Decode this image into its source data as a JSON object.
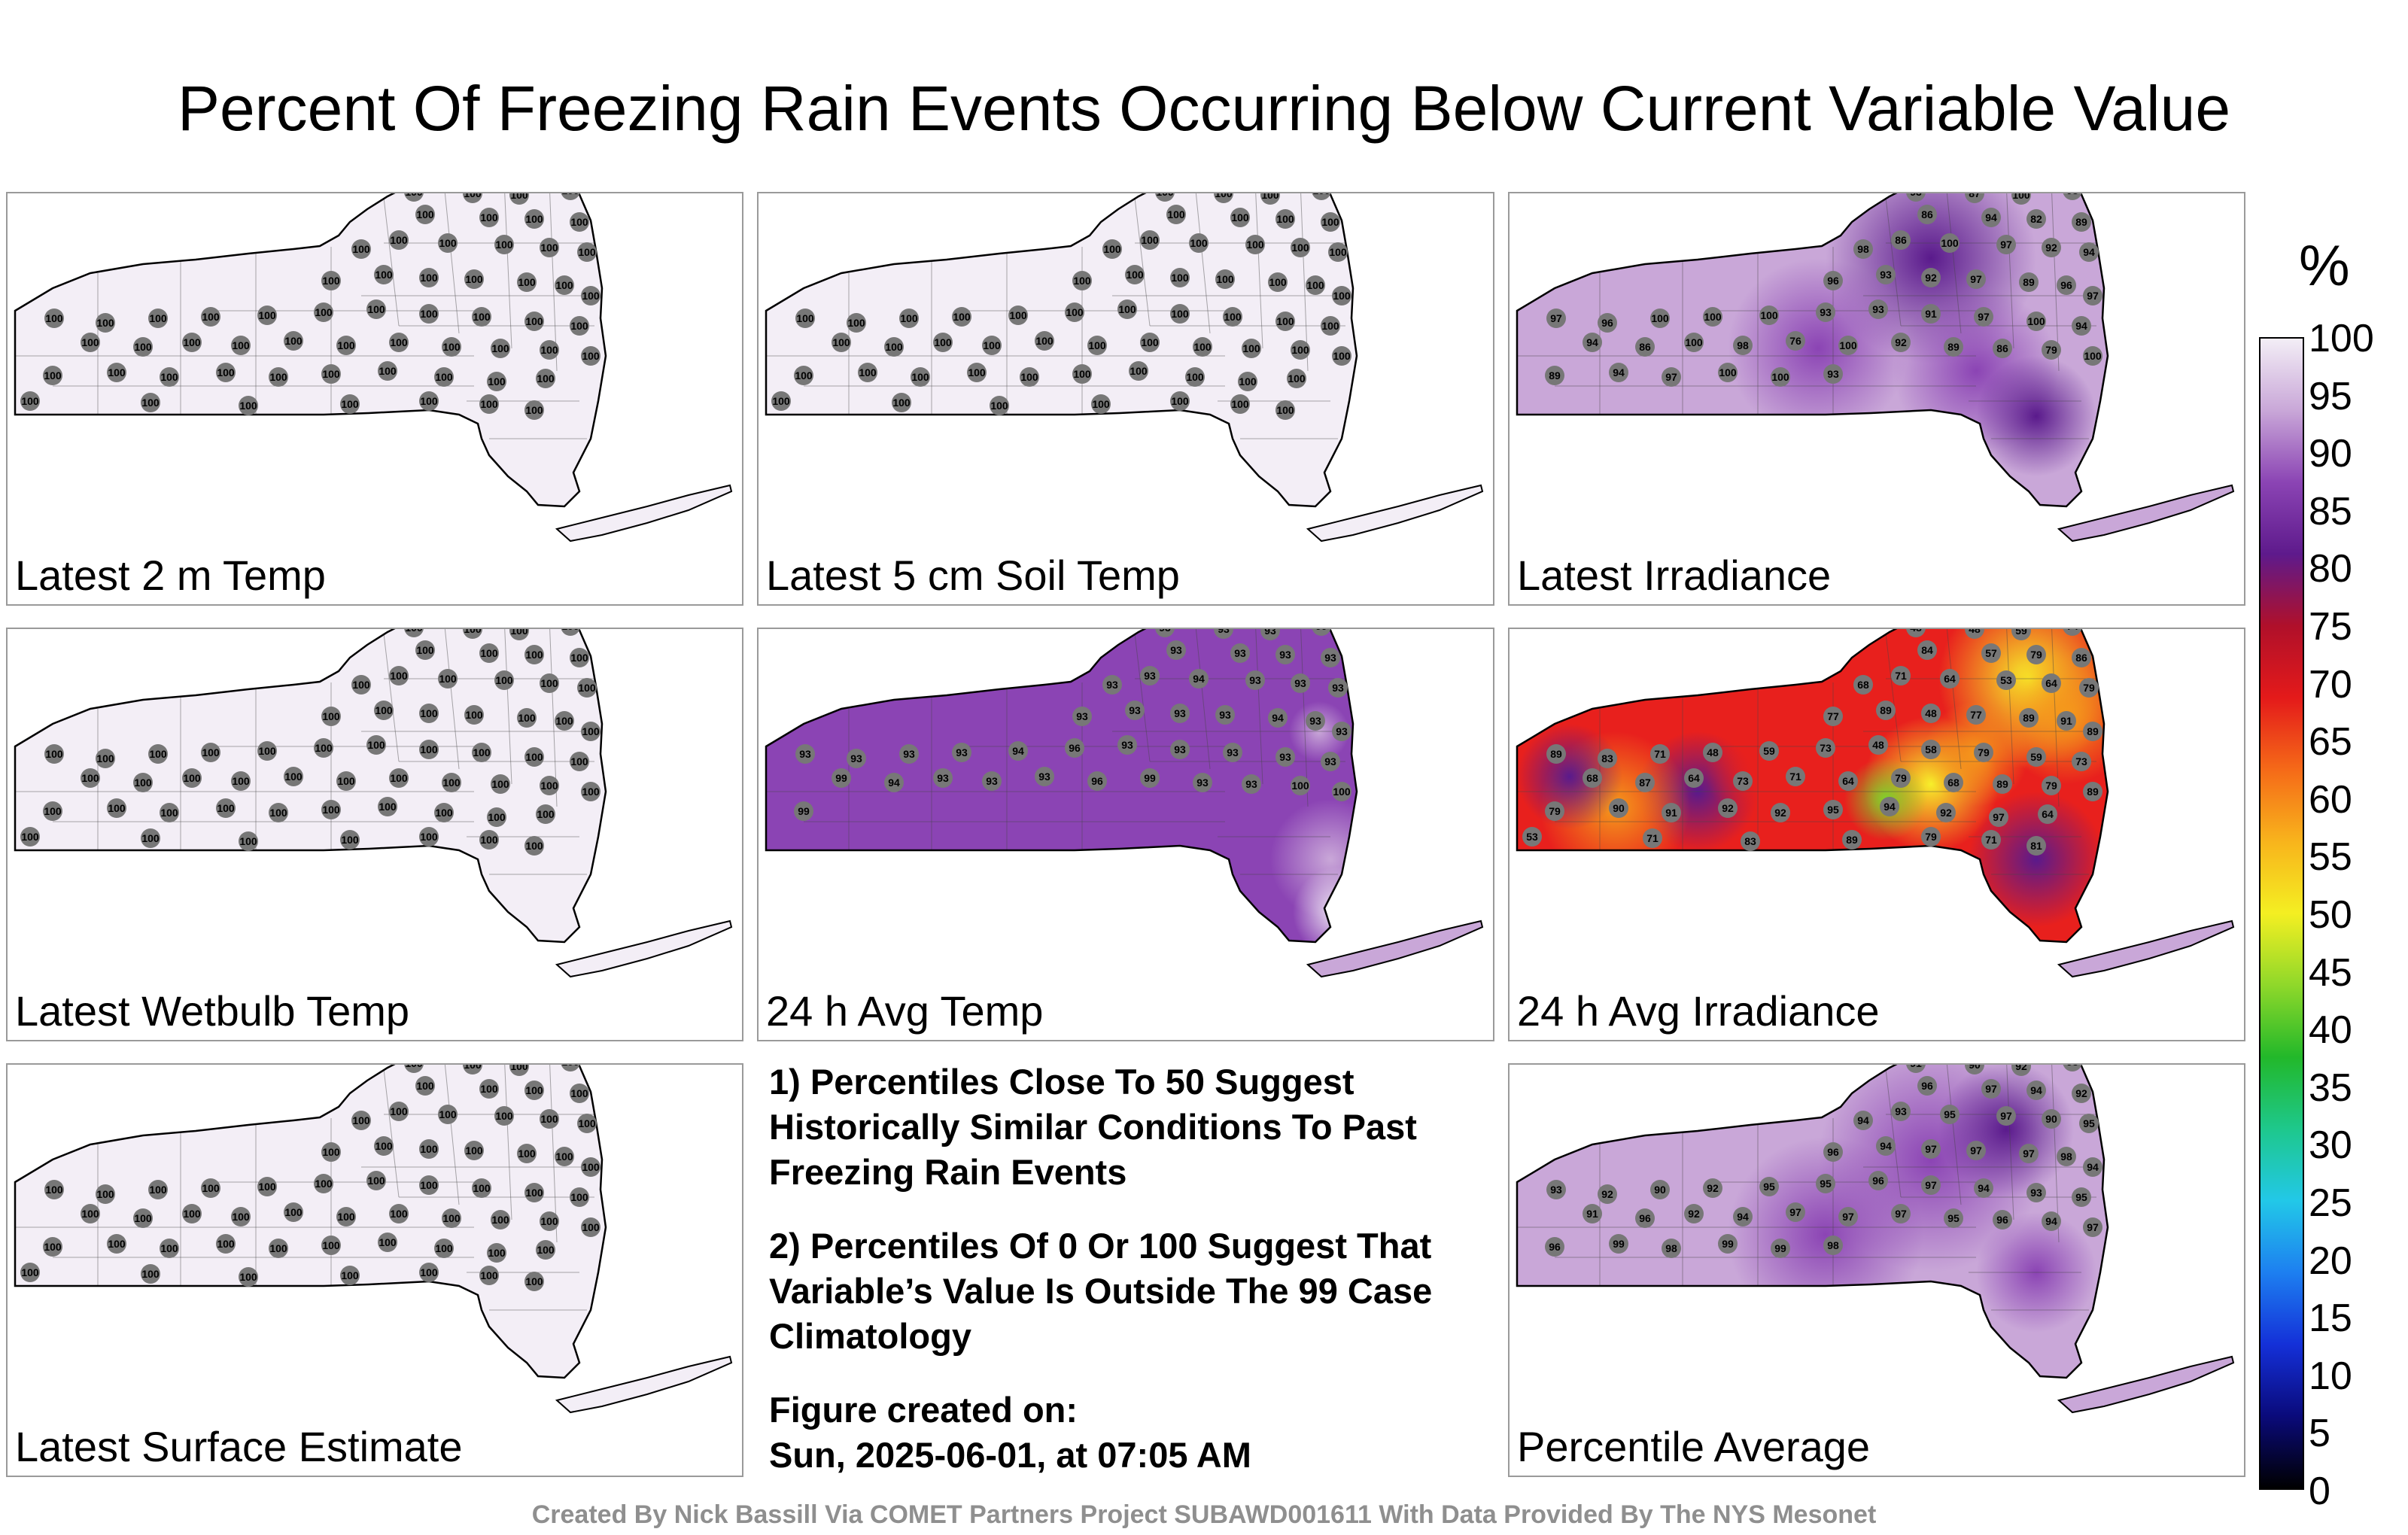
{
  "title": "Percent Of Freezing Rain Events Occurring Below Current Variable Value",
  "colors": {
    "very_high": "#f3eef6",
    "high": "#c9a7d8",
    "purple": "#8b44b4",
    "deep_purple": "#5a1a8c",
    "red": "#e8201d",
    "orange": "#f59a1b",
    "yellow": "#f7ef2a",
    "green": "#7fd12b",
    "station_marker": "#777777"
  },
  "panels": [
    {
      "label": "Latest 2 m Temp",
      "values": [
        100,
        100,
        100,
        100,
        100,
        100,
        100,
        100,
        100,
        100,
        100,
        100,
        100,
        100,
        100,
        100,
        100,
        100,
        100,
        100,
        100,
        100,
        100,
        100,
        100,
        100,
        100,
        100,
        100,
        100,
        100,
        100,
        100,
        100,
        100,
        100,
        100,
        100,
        100,
        100,
        100,
        100,
        100,
        100,
        100,
        100,
        100,
        100,
        100,
        100,
        100,
        100,
        100,
        100,
        100,
        100,
        100,
        100,
        100,
        100
      ]
    },
    {
      "label": "Latest 5 cm Soil Temp",
      "values": [
        100,
        100,
        100,
        100,
        100,
        100,
        100,
        100,
        100,
        100,
        100,
        100,
        100,
        100,
        100,
        100,
        100,
        100,
        100,
        100,
        100,
        100,
        100,
        100,
        100,
        100,
        100,
        100,
        100,
        100,
        100,
        100,
        100,
        100,
        100,
        100,
        100,
        100,
        100,
        100,
        100,
        100,
        100,
        100,
        100,
        100,
        100,
        100,
        100,
        100,
        100,
        100,
        100,
        100,
        100,
        100,
        100,
        100,
        100,
        100
      ]
    },
    {
      "label": "Latest Irradiance",
      "values": [
        93,
        87,
        100,
        98,
        86,
        94,
        82,
        89,
        98,
        86,
        100,
        97,
        92,
        94,
        96,
        93,
        92,
        97,
        89,
        96,
        97,
        97,
        96,
        100,
        100,
        100,
        93,
        93,
        91,
        97,
        100,
        94,
        94,
        86,
        100,
        98,
        76,
        100,
        92,
        89,
        86,
        79,
        100,
        89,
        94,
        97,
        100,
        100,
        93
      ]
    },
    {
      "label": "Latest Wetbulb Temp",
      "values": [
        100,
        100,
        100,
        100,
        100,
        100,
        100,
        100,
        100,
        100,
        100,
        100,
        100,
        100,
        100,
        100,
        100,
        100,
        100,
        100,
        100,
        100,
        100,
        100,
        100,
        100,
        100,
        100,
        100,
        100,
        100,
        100,
        100,
        100,
        100,
        100,
        100,
        100,
        100,
        100,
        100,
        100,
        100,
        100,
        100,
        100,
        100,
        100,
        100,
        100,
        100,
        100,
        100,
        100,
        100,
        100,
        100,
        100,
        100,
        100
      ]
    },
    {
      "label": "24 h Avg Temp",
      "values": [
        93,
        93,
        93,
        99,
        93,
        93,
        93,
        93,
        93,
        93,
        94,
        93,
        93,
        93,
        93,
        93,
        93,
        93,
        94,
        93,
        93,
        93,
        93,
        93,
        93,
        94,
        96,
        93,
        93,
        93,
        93,
        93,
        99,
        94,
        93,
        93,
        93,
        96,
        99,
        93,
        93,
        100,
        100,
        99
      ]
    },
    {
      "label": "24 h Avg Irradiance",
      "values": [
        48,
        48,
        59,
        74,
        84,
        57,
        79,
        86,
        68,
        71,
        64,
        53,
        64,
        79,
        77,
        89,
        48,
        77,
        89,
        91,
        89,
        89,
        83,
        71,
        48,
        59,
        73,
        48,
        58,
        79,
        59,
        73,
        68,
        87,
        64,
        73,
        71,
        64,
        79,
        68,
        89,
        79,
        89,
        79,
        90,
        91,
        92,
        92,
        95,
        94,
        92,
        97,
        64,
        53,
        71,
        83,
        89,
        79,
        71,
        81
      ]
    },
    {
      "label": "Latest Surface Estimate",
      "values": [
        100,
        100,
        100,
        100,
        100,
        100,
        100,
        100,
        100,
        100,
        100,
        100,
        100,
        100,
        100,
        100,
        100,
        100,
        100,
        100,
        100,
        100,
        100,
        100,
        100,
        100,
        100,
        100,
        100,
        100,
        100,
        100,
        100,
        100,
        100,
        100,
        100,
        100,
        100,
        100,
        100,
        100,
        100,
        100,
        100,
        100,
        100,
        100,
        100,
        100,
        100,
        100,
        100,
        100,
        100,
        100,
        100,
        100,
        100,
        100
      ]
    },
    {
      "label": "Percentile Average",
      "values": [
        91,
        90,
        92,
        93,
        96,
        97,
        94,
        92,
        94,
        93,
        95,
        97,
        90,
        95,
        96,
        94,
        97,
        97,
        97,
        98,
        94,
        93,
        92,
        90,
        92,
        95,
        95,
        96,
        97,
        94,
        93,
        95,
        91,
        96,
        92,
        94,
        97,
        97,
        97,
        95,
        96,
        94,
        97,
        96,
        99,
        98,
        99,
        99,
        98
      ]
    }
  ],
  "notes": [
    "1) Percentiles Close To 50 Suggest Historically Similar Conditions To Past Freezing Rain Events",
    "2) Percentiles Of 0 Or 100 Suggest That Variable’s Value Is Outside The 99 Case Climatology"
  ],
  "figure_created_label": "Figure created on:",
  "figure_created_value": "Sun, 2025-06-01, at 07:05 AM",
  "colorbar": {
    "unit": "%",
    "min": 0,
    "max": 100,
    "ticks": [
      "100",
      "95",
      "90",
      "85",
      "80",
      "75",
      "70",
      "65",
      "60",
      "55",
      "50",
      "45",
      "40",
      "35",
      "30",
      "25",
      "20",
      "15",
      "10",
      "5",
      "0"
    ]
  },
  "footer": "Created By Nick Bassill Via COMET Partners Project SUBAWD001611 With Data Provided By The NYS Mesonet"
}
